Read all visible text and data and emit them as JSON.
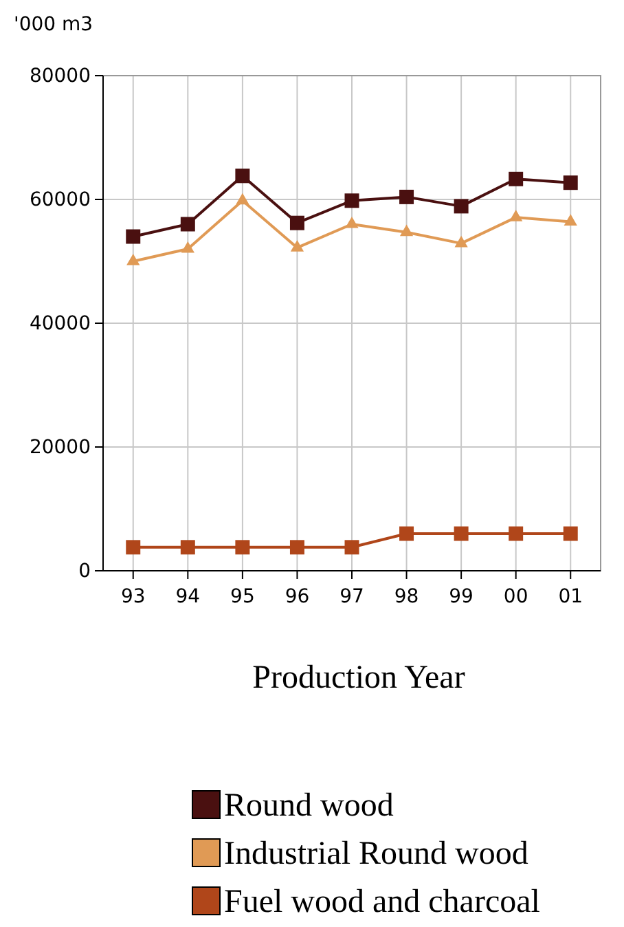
{
  "chart_data": {
    "type": "line",
    "xlabel": "Production Year",
    "ylabel": "'000 m3",
    "categories": [
      "93",
      "94",
      "95",
      "96",
      "97",
      "98",
      "99",
      "00",
      "01"
    ],
    "ylim": [
      0,
      80000
    ],
    "yticks": [
      0,
      20000,
      40000,
      60000,
      80000
    ],
    "grid": true,
    "legend": "bottom",
    "series": [
      {
        "name": "Round wood",
        "color": "#4a1010",
        "marker": "square",
        "values": [
          54000,
          56000,
          63800,
          56200,
          59800,
          60400,
          58900,
          63300,
          62700
        ]
      },
      {
        "name": "Industrial Round wood",
        "color": "#e09a55",
        "marker": "triangle",
        "values": [
          50000,
          52000,
          59800,
          52200,
          56000,
          54700,
          52900,
          57100,
          56400
        ]
      },
      {
        "name": "Fuel wood and charcoal",
        "color": "#b0461a",
        "marker": "square",
        "values": [
          3800,
          3800,
          3800,
          3800,
          3800,
          6000,
          6000,
          6000,
          6000
        ]
      }
    ]
  }
}
